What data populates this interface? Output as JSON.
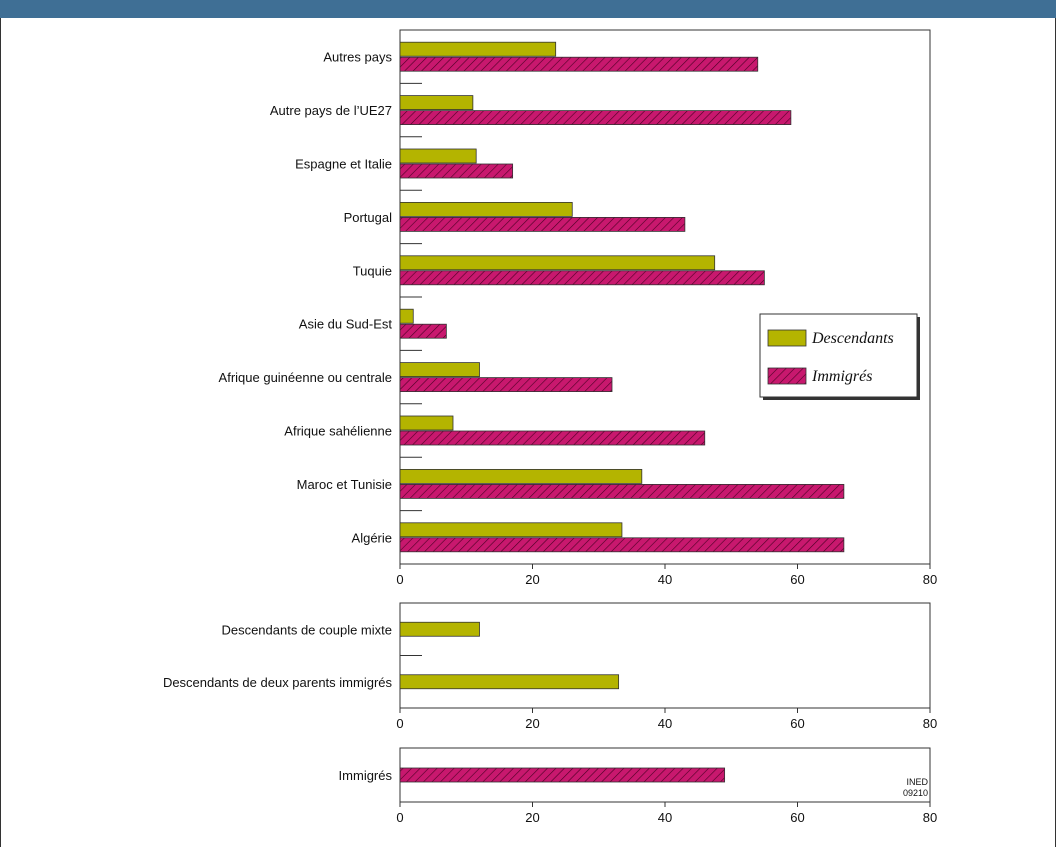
{
  "colors": {
    "descendants": "#b4b400",
    "immigres": "#c8186e",
    "header": "#3f6f95"
  },
  "legend": {
    "descendants_label": "Descendants",
    "immigres_label": "Immigrés"
  },
  "watermark": {
    "line1": "INED",
    "line2": "09210"
  },
  "chart_data": [
    {
      "type": "bar",
      "orientation": "horizontal",
      "categories": [
        "Autres pays",
        "Autre pays de l’UE27",
        "Espagne et Italie",
        "Portugal",
        "Tuquie",
        "Asie du Sud-Est",
        "Afrique guinéenne ou centrale",
        "Afrique sahélienne",
        "Maroc et Tunisie",
        "Algérie"
      ],
      "series": [
        {
          "name": "Descendants",
          "values": [
            23.5,
            11,
            11.5,
            26,
            47.5,
            2,
            12,
            8,
            36.5,
            33.5
          ]
        },
        {
          "name": "Immigrés",
          "values": [
            54,
            59,
            17,
            43,
            55,
            7,
            32,
            46,
            67,
            67
          ]
        }
      ],
      "xlim": [
        0,
        80
      ],
      "xticks": [
        "0",
        "20",
        "40",
        "60",
        "80"
      ],
      "legend_position": "right"
    },
    {
      "type": "bar",
      "orientation": "horizontal",
      "categories": [
        "Descendants de couple mixte",
        "Descendants de deux parents immigrés"
      ],
      "series": [
        {
          "name": "Descendants",
          "values": [
            12,
            33
          ]
        }
      ],
      "xlim": [
        0,
        80
      ],
      "xticks": [
        "0",
        "20",
        "40",
        "60",
        "80"
      ]
    },
    {
      "type": "bar",
      "orientation": "horizontal",
      "categories": [
        "Immigrés"
      ],
      "series": [
        {
          "name": "Immigrés",
          "values": [
            49
          ]
        }
      ],
      "xlim": [
        0,
        80
      ],
      "xticks": [
        "0",
        "20",
        "40",
        "60",
        "80"
      ]
    }
  ]
}
